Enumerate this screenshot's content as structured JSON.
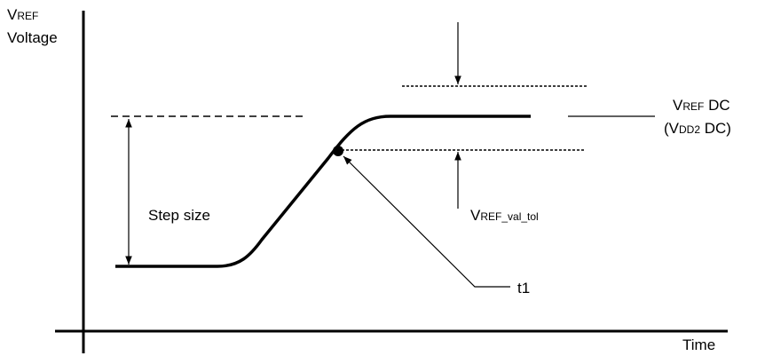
{
  "labels": {
    "y_axis": {
      "main": "V",
      "small": "REF",
      "line2": "Voltage"
    },
    "step_size": "Step size",
    "vref_dc": {
      "main": "V",
      "small": "REF",
      "rest": " DC"
    },
    "vdd2_dc": {
      "open": "(V",
      "small": "DD2",
      "rest": " DC)"
    },
    "tolerance": {
      "main": "V",
      "small": "REF_val_tol"
    },
    "t1": "t1",
    "x_axis": "Time"
  }
}
